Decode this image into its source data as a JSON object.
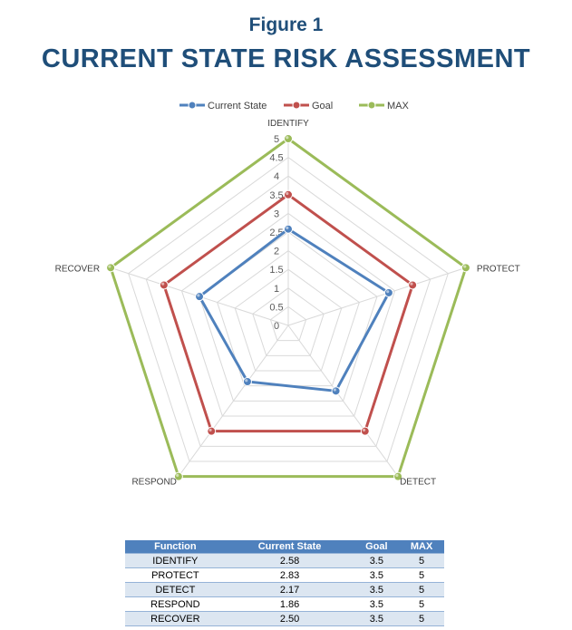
{
  "figure_label": "Figure 1",
  "chart_data": {
    "type": "radar",
    "title": "CURRENT STATE RISK ASSESSMENT",
    "categories": [
      "IDENTIFY",
      "PROTECT",
      "DETECT",
      "RESPOND",
      "RECOVER"
    ],
    "series": [
      {
        "name": "Current State",
        "values": [
          2.58,
          2.83,
          2.17,
          1.86,
          2.5
        ],
        "color": "#4f81bd"
      },
      {
        "name": "Goal",
        "values": [
          3.5,
          3.5,
          3.5,
          3.5,
          3.5
        ],
        "color": "#c0504d"
      },
      {
        "name": "MAX",
        "values": [
          5,
          5,
          5,
          5,
          5
        ],
        "color": "#9bbb59"
      }
    ],
    "rmin": 0,
    "rmax": 5,
    "ticks": [
      "0",
      "0.5",
      "1",
      "1.5",
      "2",
      "2.5",
      "3",
      "3.5",
      "4",
      "4.5",
      "5"
    ],
    "legend": "top",
    "grid": true
  },
  "table": {
    "headers": [
      "Function",
      "Current State",
      "Goal",
      "MAX"
    ],
    "rows": [
      [
        "IDENTIFY",
        "2.58",
        "3.5",
        "5"
      ],
      [
        "PROTECT",
        "2.83",
        "3.5",
        "5"
      ],
      [
        "DETECT",
        "2.17",
        "3.5",
        "5"
      ],
      [
        "RESPOND",
        "1.86",
        "3.5",
        "5"
      ],
      [
        "RECOVER",
        "2.50",
        "3.5",
        "5"
      ]
    ]
  }
}
